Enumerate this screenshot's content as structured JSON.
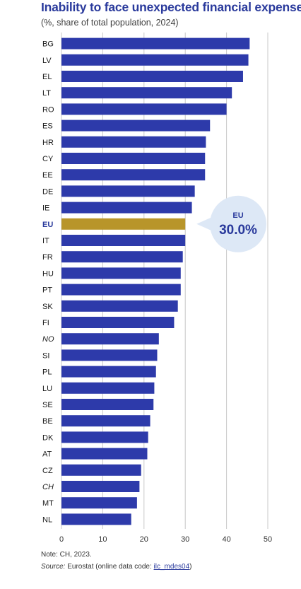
{
  "chart_data": {
    "type": "bar",
    "orientation": "horizontal",
    "title": "Inability to face unexpected financial expenses",
    "subtitle": "(%, share of total population, 2024)",
    "categories": [
      "BG",
      "LV",
      "EL",
      "LT",
      "RO",
      "ES",
      "HR",
      "CY",
      "EE",
      "DE",
      "IE",
      "EU",
      "IT",
      "FR",
      "HU",
      "PT",
      "SK",
      "FI",
      "NO",
      "SI",
      "PL",
      "LU",
      "SE",
      "BE",
      "DK",
      "AT",
      "CZ",
      "CH",
      "MT",
      "NL"
    ],
    "values": [
      45.6,
      45.3,
      44.0,
      41.3,
      40.0,
      36.0,
      35.0,
      34.8,
      34.8,
      32.3,
      31.6,
      30.0,
      30.0,
      29.4,
      28.9,
      28.9,
      28.2,
      27.3,
      23.6,
      23.2,
      22.9,
      22.5,
      22.3,
      21.5,
      21.0,
      20.8,
      19.3,
      18.9,
      18.3,
      16.9
    ],
    "italic_categories": [
      "NO",
      "CH"
    ],
    "highlight_category": "EU",
    "xlim": [
      0,
      50
    ],
    "xticks": [
      0,
      10,
      20,
      30,
      40,
      50
    ],
    "grid": true,
    "colors": {
      "bar": "#2d3aaa",
      "highlight": "#b8952a",
      "bubble": "#dde8f6",
      "grid": "#c8c8c8"
    },
    "callout": {
      "label": "EU",
      "value": "30.0%"
    }
  },
  "note": "Note: CH, 2023.",
  "source": {
    "label": "Source:",
    "text": " Eurostat (online data code: ",
    "code": "ilc_mdes04",
    "close": ")"
  }
}
